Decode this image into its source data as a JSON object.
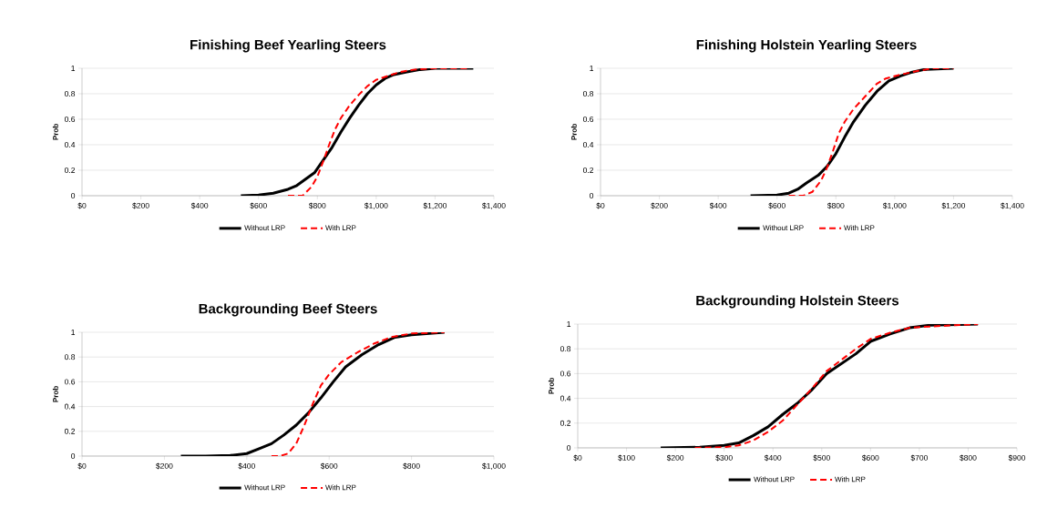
{
  "chart_data": [
    {
      "type": "line",
      "title": "Finishing  Beef Yearling Steers",
      "ylabel": "Prob",
      "grid": "y",
      "legend": "bottom",
      "xlim": [
        0,
        1400
      ],
      "ylim": [
        0,
        1
      ],
      "xticks": [
        {
          "value": 0,
          "label": "$0"
        },
        {
          "value": 200,
          "label": "$200"
        },
        {
          "value": 400,
          "label": "$400"
        },
        {
          "value": 600,
          "label": "$600"
        },
        {
          "value": 800,
          "label": "$800"
        },
        {
          "value": 1000,
          "label": "$1,000"
        },
        {
          "value": 1200,
          "label": "$1,200"
        },
        {
          "value": 1400,
          "label": "$1,400"
        }
      ],
      "yticks": [
        0,
        0.2,
        0.4,
        0.6,
        0.8,
        1
      ],
      "series": [
        {
          "name": "Without LRP",
          "color": "#000000",
          "line_style": "solid",
          "x": [
            540,
            600,
            650,
            700,
            730,
            760,
            790,
            820,
            850,
            880,
            910,
            940,
            970,
            1000,
            1030,
            1060,
            1100,
            1150,
            1200,
            1330
          ],
          "values": [
            0,
            0.005,
            0.02,
            0.05,
            0.08,
            0.13,
            0.18,
            0.28,
            0.38,
            0.5,
            0.61,
            0.71,
            0.8,
            0.87,
            0.92,
            0.95,
            0.97,
            0.99,
            1,
            1
          ]
        },
        {
          "name": "With LRP",
          "color": "#ff0000",
          "line_style": "dashed",
          "x": [
            700,
            750,
            780,
            800,
            820,
            840,
            860,
            880,
            910,
            940,
            970,
            1000,
            1040,
            1080,
            1130,
            1200,
            1320
          ],
          "values": [
            0,
            0,
            0.07,
            0.15,
            0.27,
            0.4,
            0.52,
            0.61,
            0.71,
            0.79,
            0.86,
            0.91,
            0.94,
            0.97,
            0.99,
            1,
            1
          ]
        }
      ]
    },
    {
      "type": "line",
      "title": "Finishing Holstein Yearling Steers",
      "ylabel": "Prob",
      "grid": "y",
      "legend": "bottom",
      "xlim": [
        0,
        1400
      ],
      "ylim": [
        0,
        1
      ],
      "xticks": [
        {
          "value": 0,
          "label": "$0"
        },
        {
          "value": 200,
          "label": "$200"
        },
        {
          "value": 400,
          "label": "$400"
        },
        {
          "value": 600,
          "label": "$600"
        },
        {
          "value": 800,
          "label": "$800"
        },
        {
          "value": 1000,
          "label": "$1,000"
        },
        {
          "value": 1200,
          "label": "$1,200"
        },
        {
          "value": 1400,
          "label": "$1,400"
        }
      ],
      "yticks": [
        0,
        0.2,
        0.4,
        0.6,
        0.8,
        1
      ],
      "series": [
        {
          "name": "Without LRP",
          "color": "#000000",
          "line_style": "solid",
          "x": [
            510,
            600,
            640,
            670,
            700,
            740,
            770,
            800,
            830,
            860,
            900,
            940,
            980,
            1020,
            1060,
            1100,
            1200
          ],
          "values": [
            0,
            0.005,
            0.02,
            0.05,
            0.1,
            0.16,
            0.23,
            0.33,
            0.46,
            0.58,
            0.71,
            0.82,
            0.9,
            0.94,
            0.97,
            0.99,
            1
          ]
        },
        {
          "name": "With LRP",
          "color": "#ff0000",
          "line_style": "dashed",
          "x": [
            640,
            690,
            720,
            750,
            770,
            790,
            810,
            830,
            860,
            900,
            940,
            970,
            1020,
            1080,
            1130,
            1200
          ],
          "values": [
            0,
            0,
            0.03,
            0.12,
            0.22,
            0.35,
            0.49,
            0.58,
            0.68,
            0.78,
            0.88,
            0.92,
            0.95,
            0.98,
            1,
            1
          ]
        }
      ]
    },
    {
      "type": "line",
      "title": "Backgrounding Beef Steers",
      "ylabel": "Prob",
      "grid": "y",
      "legend": "bottom",
      "xlim": [
        0,
        1000
      ],
      "ylim": [
        0,
        1
      ],
      "xticks": [
        {
          "value": 0,
          "label": "$0"
        },
        {
          "value": 200,
          "label": "$200"
        },
        {
          "value": 400,
          "label": "$400"
        },
        {
          "value": 600,
          "label": "$600"
        },
        {
          "value": 800,
          "label": "$800"
        },
        {
          "value": 1000,
          "label": "$1,000"
        }
      ],
      "yticks": [
        0,
        0.2,
        0.4,
        0.6,
        0.8,
        1
      ],
      "series": [
        {
          "name": "Without LRP",
          "color": "#000000",
          "line_style": "solid",
          "x": [
            240,
            300,
            360,
            400,
            430,
            460,
            490,
            520,
            550,
            580,
            610,
            640,
            680,
            720,
            760,
            800,
            880
          ],
          "values": [
            0,
            0,
            0.005,
            0.02,
            0.06,
            0.1,
            0.17,
            0.25,
            0.35,
            0.47,
            0.6,
            0.72,
            0.82,
            0.9,
            0.96,
            0.98,
            1
          ]
        },
        {
          "name": "With LRP",
          "color": "#ff0000",
          "line_style": "dashed",
          "x": [
            460,
            480,
            500,
            520,
            540,
            560,
            580,
            600,
            630,
            670,
            710,
            750,
            800,
            880
          ],
          "values": [
            0,
            0,
            0.02,
            0.1,
            0.25,
            0.42,
            0.57,
            0.66,
            0.76,
            0.84,
            0.91,
            0.96,
            0.99,
            1
          ]
        }
      ]
    },
    {
      "type": "line",
      "title": "Backgrounding Holstein Steers",
      "ylabel": "Prob",
      "grid": "y",
      "legend": "bottom",
      "xlim": [
        0,
        900
      ],
      "ylim": [
        0,
        1
      ],
      "xticks": [
        {
          "value": 0,
          "label": "$0"
        },
        {
          "value": 100,
          "label": "$100"
        },
        {
          "value": 200,
          "label": "$200"
        },
        {
          "value": 300,
          "label": "$300"
        },
        {
          "value": 400,
          "label": "$400"
        },
        {
          "value": 500,
          "label": "$500"
        },
        {
          "value": 600,
          "label": "$600"
        },
        {
          "value": 700,
          "label": "$700"
        },
        {
          "value": 800,
          "label": "$800"
        },
        {
          "value": 900,
          "label": "$900"
        }
      ],
      "yticks": [
        0,
        0.2,
        0.4,
        0.6,
        0.8,
        1
      ],
      "series": [
        {
          "name": "Without LRP",
          "color": "#000000",
          "line_style": "solid",
          "x": [
            170,
            250,
            300,
            330,
            360,
            390,
            420,
            450,
            480,
            510,
            540,
            570,
            600,
            640,
            680,
            720,
            820
          ],
          "values": [
            0,
            0.005,
            0.02,
            0.04,
            0.1,
            0.17,
            0.27,
            0.36,
            0.47,
            0.6,
            0.68,
            0.76,
            0.86,
            0.92,
            0.97,
            0.99,
            1
          ]
        },
        {
          "name": "With LRP",
          "color": "#ff0000",
          "line_style": "dashed",
          "x": [
            240,
            300,
            330,
            360,
            390,
            420,
            450,
            480,
            510,
            540,
            570,
            600,
            640,
            680,
            720,
            820
          ],
          "values": [
            0,
            0.005,
            0.02,
            0.06,
            0.13,
            0.22,
            0.35,
            0.48,
            0.62,
            0.71,
            0.8,
            0.88,
            0.93,
            0.97,
            0.98,
            1
          ]
        }
      ]
    }
  ]
}
